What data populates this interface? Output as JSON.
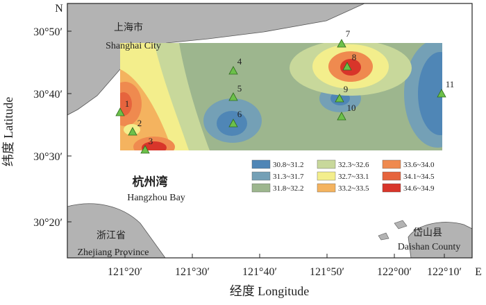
{
  "map": {
    "north_label": "N",
    "east_label": "E",
    "x_axis_title": "经度 Longitude",
    "y_axis_title": "纬度 Latitude",
    "x_ticks": [
      "121°20′",
      "121°30′",
      "121°40′",
      "121°50′",
      "122°00′",
      "122°10′"
    ],
    "y_ticks": [
      "30°50′",
      "30°40′",
      "30°30′",
      "30°20′"
    ],
    "places": [
      {
        "name_cn": "上海市",
        "name_en": "Shanghai City"
      },
      {
        "name_cn": "杭州湾",
        "name_en": "Hangzhou Bay"
      },
      {
        "name_cn": "浙江省",
        "name_en": "Zhejiang Province"
      },
      {
        "name_cn": "岱山县",
        "name_en": "Daishan County"
      }
    ],
    "stations": [
      "1",
      "2",
      "3",
      "4",
      "5",
      "6",
      "7",
      "8",
      "9",
      "10",
      "11"
    ],
    "legend": [
      {
        "label": "30.8~31.2",
        "color": "#4f86b6"
      },
      {
        "label": "31.3~31.7",
        "color": "#74a0b6"
      },
      {
        "label": "31.8~32.2",
        "color": "#9db68e"
      },
      {
        "label": "32.3~32.6",
        "color": "#c8d89b"
      },
      {
        "label": "32.7~33.1",
        "color": "#f3ee8c"
      },
      {
        "label": "33.2~33.5",
        "color": "#f4b35f"
      },
      {
        "label": "33.6~34.0",
        "color": "#ef8a4f"
      },
      {
        "label": "34.1~34.5",
        "color": "#e6643d"
      },
      {
        "label": "34.6~34.9",
        "color": "#d8352a"
      }
    ]
  }
}
